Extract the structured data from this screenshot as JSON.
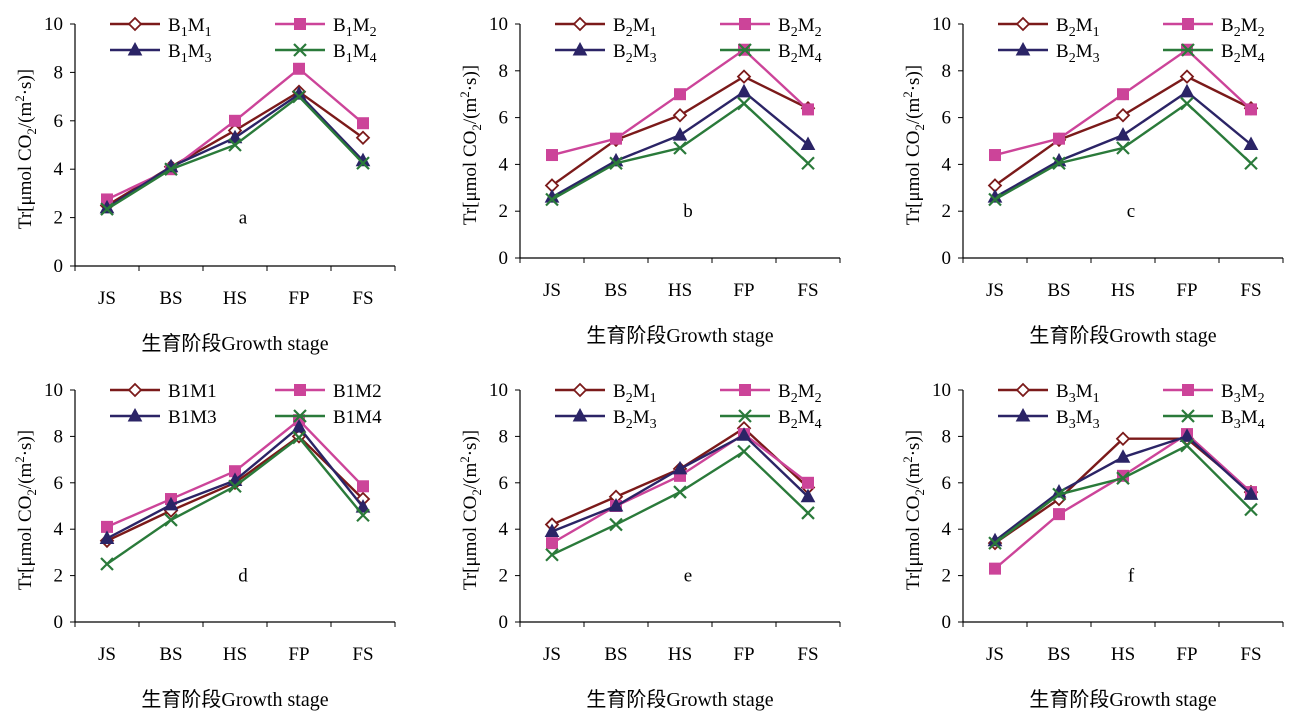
{
  "colors": {
    "M1": "#7b1a1a",
    "M2": "#cc4499",
    "M3": "#2b2466",
    "M4": "#2a7a3a"
  },
  "chart_data": [
    {
      "type": "line",
      "panel_label": "a",
      "categories": [
        "JS",
        "BS",
        "HS",
        "FP",
        "FS"
      ],
      "xlabel": "生育阶段Growth stage",
      "ylabel": "Tr[μmol CO2/(m2·s)]",
      "ylim": [
        0,
        10
      ],
      "yticks": [
        0,
        2,
        4,
        6,
        8,
        10
      ],
      "legend_placement": "top",
      "series": [
        {
          "name": "B1M1",
          "values": [
            2.5,
            4.1,
            5.6,
            7.2,
            5.3
          ],
          "marker": "diamond-open",
          "color_key": "M1"
        },
        {
          "name": "B1M2",
          "values": [
            2.75,
            4.0,
            6.0,
            8.15,
            5.9
          ],
          "marker": "square",
          "color_key": "M2"
        },
        {
          "name": "B1M3",
          "values": [
            2.4,
            4.1,
            5.3,
            7.1,
            4.35
          ],
          "marker": "triangle",
          "color_key": "M3"
        },
        {
          "name": "B1M4",
          "values": [
            2.35,
            4.0,
            5.0,
            7.0,
            4.25
          ],
          "marker": "x",
          "color_key": "M4"
        }
      ]
    },
    {
      "type": "line",
      "panel_label": "b",
      "categories": [
        "JS",
        "BS",
        "HS",
        "FP",
        "FS"
      ],
      "xlabel": "生育阶段Growth stage",
      "ylabel": "Tr[μmol CO2/(m2·s)]",
      "ylim": [
        0,
        10
      ],
      "yticks": [
        0,
        2,
        4,
        6,
        8,
        10
      ],
      "legend_placement": "top",
      "series": [
        {
          "name": "B2M1",
          "values": [
            3.1,
            5.05,
            6.1,
            7.75,
            6.4
          ],
          "marker": "diamond-open",
          "color_key": "M1"
        },
        {
          "name": "B2M2",
          "values": [
            4.4,
            5.1,
            7.0,
            8.9,
            6.35
          ],
          "marker": "square",
          "color_key": "M2"
        },
        {
          "name": "B2M3",
          "values": [
            2.6,
            4.15,
            5.25,
            7.1,
            4.85
          ],
          "marker": "triangle",
          "color_key": "M3"
        },
        {
          "name": "B2M4",
          "values": [
            2.5,
            4.05,
            4.7,
            6.6,
            4.05
          ],
          "marker": "x",
          "color_key": "M4"
        }
      ]
    },
    {
      "type": "line",
      "panel_label": "c",
      "categories": [
        "JS",
        "BS",
        "HS",
        "FP",
        "FS"
      ],
      "xlabel": "生育阶段Growth stage",
      "ylabel": "Tr[μmol CO2/(m2·s)]",
      "ylim": [
        0,
        10
      ],
      "yticks": [
        0,
        2,
        4,
        6,
        8,
        10
      ],
      "legend_placement": "top",
      "series": [
        {
          "name": "B2M1",
          "values": [
            3.1,
            5.05,
            6.1,
            7.75,
            6.4
          ],
          "marker": "diamond-open",
          "color_key": "M1"
        },
        {
          "name": "B2M2",
          "values": [
            4.4,
            5.1,
            7.0,
            8.9,
            6.35
          ],
          "marker": "square",
          "color_key": "M2"
        },
        {
          "name": "B2M3",
          "values": [
            2.6,
            4.15,
            5.25,
            7.1,
            4.85
          ],
          "marker": "triangle",
          "color_key": "M3"
        },
        {
          "name": "B2M4",
          "values": [
            2.5,
            4.05,
            4.7,
            6.6,
            4.05
          ],
          "marker": "x",
          "color_key": "M4"
        }
      ]
    },
    {
      "type": "line",
      "panel_label": "d",
      "categories": [
        "JS",
        "BS",
        "HS",
        "FP",
        "FS"
      ],
      "xlabel": "生育阶段Growth stage",
      "ylabel": "Tr[μmol CO2/(m2·s)]",
      "ylim": [
        0,
        10
      ],
      "yticks": [
        0,
        2,
        4,
        6,
        8,
        10
      ],
      "legend_placement": "top",
      "series": [
        {
          "name": "B1M1",
          "values": [
            3.5,
            4.8,
            6.0,
            8.0,
            5.3
          ],
          "marker": "diamond-open",
          "color_key": "M1"
        },
        {
          "name": "B1M2",
          "values": [
            4.1,
            5.3,
            6.5,
            8.7,
            5.85
          ],
          "marker": "square",
          "color_key": "M2"
        },
        {
          "name": "B1M3",
          "values": [
            3.6,
            5.05,
            6.1,
            8.4,
            4.95
          ],
          "marker": "triangle",
          "color_key": "M3"
        },
        {
          "name": "B1M4",
          "values": [
            2.5,
            4.4,
            5.85,
            7.95,
            4.6
          ],
          "marker": "x",
          "color_key": "M4"
        }
      ]
    },
    {
      "type": "line",
      "panel_label": "e",
      "categories": [
        "JS",
        "BS",
        "HS",
        "FP",
        "FS"
      ],
      "xlabel": "生育阶段Growth stage",
      "ylabel": "Tr[μmol CO2/(m2·s)]",
      "ylim": [
        0,
        10
      ],
      "yticks": [
        0,
        2,
        4,
        6,
        8,
        10
      ],
      "legend_placement": "top",
      "series": [
        {
          "name": "B2M1",
          "values": [
            4.2,
            5.4,
            6.6,
            8.35,
            5.8
          ],
          "marker": "diamond-open",
          "color_key": "M1"
        },
        {
          "name": "B2M2",
          "values": [
            3.4,
            5.0,
            6.3,
            8.1,
            6.0
          ],
          "marker": "square",
          "color_key": "M2"
        },
        {
          "name": "B2M3",
          "values": [
            3.9,
            5.0,
            6.6,
            8.05,
            5.4
          ],
          "marker": "triangle",
          "color_key": "M3"
        },
        {
          "name": "B2M4",
          "values": [
            2.9,
            4.2,
            5.6,
            7.35,
            4.7
          ],
          "marker": "x",
          "color_key": "M4"
        }
      ]
    },
    {
      "type": "line",
      "panel_label": "f",
      "categories": [
        "JS",
        "BS",
        "HS",
        "FP",
        "FS"
      ],
      "xlabel": "生育阶段Growth stage",
      "ylabel": "Tr[μmol CO2/(m2·s)]",
      "ylim": [
        0,
        10
      ],
      "yticks": [
        0,
        2,
        4,
        6,
        8,
        10
      ],
      "legend_placement": "top",
      "series": [
        {
          "name": "B3M1",
          "values": [
            3.4,
            5.3,
            7.9,
            7.9,
            5.6
          ],
          "marker": "diamond-open",
          "color_key": "M1"
        },
        {
          "name": "B3M2",
          "values": [
            2.3,
            4.65,
            6.3,
            8.1,
            5.6
          ],
          "marker": "square",
          "color_key": "M2"
        },
        {
          "name": "B3M3",
          "values": [
            3.5,
            5.6,
            7.1,
            8.0,
            5.5
          ],
          "marker": "triangle",
          "color_key": "M3"
        },
        {
          "name": "B3M4",
          "values": [
            3.4,
            5.5,
            6.2,
            7.6,
            4.85
          ],
          "marker": "x",
          "color_key": "M4"
        }
      ]
    }
  ],
  "legend_text": [
    [
      {
        "b": "B",
        "bs": "1",
        "m": "M",
        "ms": "1"
      },
      {
        "b": "B",
        "bs": "1",
        "m": "M",
        "ms": "2"
      },
      {
        "b": "B",
        "bs": "1",
        "m": "M",
        "ms": "3"
      },
      {
        "b": "B",
        "bs": "1",
        "m": "M",
        "ms": "4"
      }
    ],
    [
      {
        "b": "B",
        "bs": "2",
        "m": "M",
        "ms": "1"
      },
      {
        "b": "B",
        "bs": "2",
        "m": "M",
        "ms": "2"
      },
      {
        "b": "B",
        "bs": "2",
        "m": "M",
        "ms": "3"
      },
      {
        "b": "B",
        "bs": "2",
        "m": "M",
        "ms": "4"
      }
    ],
    [
      {
        "b": "B",
        "bs": "2",
        "m": "M",
        "ms": "1"
      },
      {
        "b": "B",
        "bs": "2",
        "m": "M",
        "ms": "2"
      },
      {
        "b": "B",
        "bs": "2",
        "m": "M",
        "ms": "3"
      },
      {
        "b": "B",
        "bs": "2",
        "m": "M",
        "ms": "4"
      }
    ],
    [
      {
        "b": "B1M1",
        "bs": "",
        "m": "",
        "ms": ""
      },
      {
        "b": "B1M2",
        "bs": "",
        "m": "",
        "ms": ""
      },
      {
        "b": "B1M3",
        "bs": "",
        "m": "",
        "ms": ""
      },
      {
        "b": "B1M4",
        "bs": "",
        "m": "",
        "ms": ""
      }
    ],
    [
      {
        "b": "B",
        "bs": "2",
        "m": "M",
        "ms": "1"
      },
      {
        "b": "B",
        "bs": "2",
        "m": "M",
        "ms": "2"
      },
      {
        "b": "B",
        "bs": "2",
        "m": "M",
        "ms": "3"
      },
      {
        "b": "B",
        "bs": "2",
        "m": "M",
        "ms": "4"
      }
    ],
    [
      {
        "b": "B",
        "bs": "3",
        "m": "M",
        "ms": "1"
      },
      {
        "b": "B",
        "bs": "3",
        "m": "M",
        "ms": "2"
      },
      {
        "b": "B",
        "bs": "3",
        "m": "M",
        "ms": "3"
      },
      {
        "b": "B",
        "bs": "3",
        "m": "M",
        "ms": "4"
      }
    ]
  ],
  "ylabel_parts": {
    "a": "Tr[μmol CO",
    "sub": "2",
    "b": "/(m",
    "sup": "2",
    "c": "·s)]"
  }
}
